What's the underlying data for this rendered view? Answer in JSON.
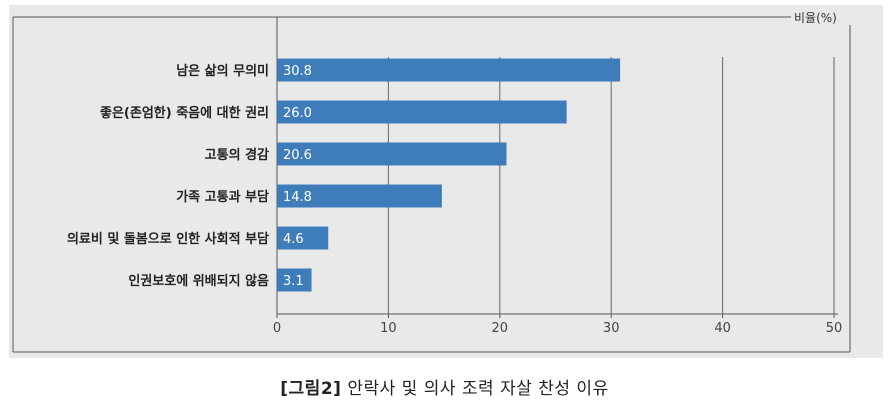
{
  "chart_data": {
    "type": "bar",
    "orientation": "horizontal",
    "categories": [
      "남은 삶의 무의미",
      "좋은(존엄한) 죽음에 대한 권리",
      "고통의 경감",
      "가족 고통과 부담",
      "의료비 및 돌봄으로 인한 사회적 부담",
      "인권보호에 위배되지 않음"
    ],
    "values": [
      30.8,
      26.0,
      20.6,
      14.8,
      4.6,
      3.1
    ],
    "value_labels": [
      "30.8",
      "26.0",
      "20.6",
      "14.8",
      "4.6",
      "3.1"
    ],
    "xlim": [
      0,
      50
    ],
    "xticks": [
      0,
      10,
      20,
      30,
      40,
      50
    ],
    "unit_label": "비율(%)",
    "grid": true,
    "colors": {
      "bar": "#3f7dba",
      "background": "#e9e9e9",
      "grid": "#666666"
    }
  },
  "caption": {
    "tag": "[그림2]",
    "text": "안락사 및 의사 조력 자살 찬성 이유"
  }
}
